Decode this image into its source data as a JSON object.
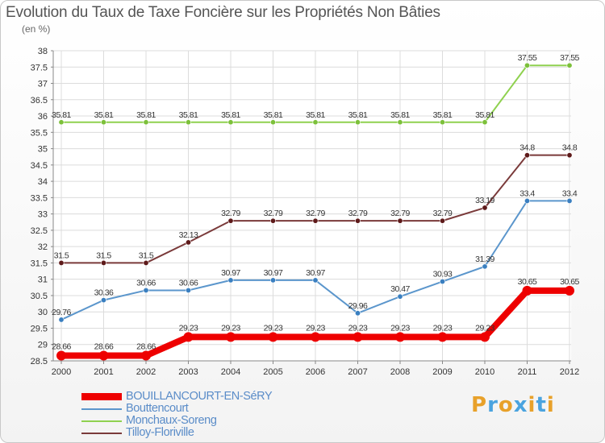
{
  "title": "Evolution du Taux de Taxe Foncière sur les Propriétés Non Bâties",
  "unit": "(en %)",
  "logo": {
    "letters": [
      "P",
      "r",
      "o",
      "x",
      "i",
      "t",
      "i"
    ],
    "colors": [
      "#e8a12a",
      "#4aa3df",
      "#e8a12a",
      "#4aa3df",
      "#e8a12a",
      "#4aa3df",
      "#e8a12a"
    ]
  },
  "chart_data": {
    "type": "line",
    "title": "Evolution du Taux de Taxe Foncière sur les Propriétés Non Bâties",
    "ylabel": "(en %)",
    "xlabel": "",
    "x": [
      "2000",
      "2001",
      "2002",
      "2003",
      "2004",
      "2005",
      "2006",
      "2007",
      "2008",
      "2009",
      "2010",
      "2011",
      "2012"
    ],
    "ylim": [
      28.5,
      38
    ],
    "yticks": [
      "28.5",
      "29",
      "29.5",
      "30",
      "30.5",
      "31",
      "31.5",
      "32",
      "32.5",
      "33",
      "33.5",
      "34",
      "34.5",
      "35",
      "35.5",
      "36",
      "36.5",
      "37",
      "37.5",
      "38"
    ],
    "grid": true,
    "legend_position": "bottom-left",
    "series": [
      {
        "name": "Monchaux-Soreng",
        "color": "#8fd14f",
        "marker": "#7cc03a",
        "width": 2,
        "values": [
          35.81,
          35.81,
          35.81,
          35.81,
          35.81,
          35.81,
          35.81,
          35.81,
          35.81,
          35.81,
          35.81,
          37.55,
          37.55
        ],
        "labels": [
          "35.81",
          "35.81",
          "35.81",
          "35.81",
          "35.81",
          "35.81",
          "35.81",
          "35.81",
          "35.81",
          "35.81",
          "35.81",
          "37.55",
          "37.55"
        ]
      },
      {
        "name": "Tilloy-Floriville",
        "color": "#7a3a3a",
        "marker": "#5e1a1a",
        "width": 2,
        "values": [
          31.5,
          31.5,
          31.5,
          32.13,
          32.79,
          32.79,
          32.79,
          32.79,
          32.79,
          32.79,
          33.19,
          34.8,
          34.8
        ],
        "labels": [
          "31.5",
          "31.5",
          "31.5",
          "32.13",
          "32.79",
          "32.79",
          "32.79",
          "32.79",
          "32.79",
          "32.79",
          "33.19",
          "34.8",
          "34.8"
        ]
      },
      {
        "name": "Bouttencourt",
        "color": "#5b96cc",
        "marker": "#3a7fc0",
        "width": 2,
        "values": [
          29.76,
          30.36,
          30.66,
          30.66,
          30.97,
          30.97,
          30.97,
          29.96,
          30.47,
          30.93,
          31.39,
          33.4,
          33.4
        ],
        "labels": [
          "29.76",
          "30.36",
          "30.66",
          "30.66",
          "30.97",
          "30.97",
          "30.97",
          "29.96",
          "30.47",
          "30.93",
          "31.39",
          "33.4",
          "33.4"
        ]
      },
      {
        "name": "BOUILLANCOURT-EN-SéRY",
        "color": "#ee0000",
        "marker": "#ee0000",
        "width": 8,
        "values": [
          28.66,
          28.66,
          28.66,
          29.23,
          29.23,
          29.23,
          29.23,
          29.23,
          29.23,
          29.23,
          29.23,
          30.65,
          30.65
        ],
        "labels": [
          "28.66",
          "28.66",
          "28.66",
          "29.23",
          "29.23",
          "29.23",
          "29.23",
          "29.23",
          "29.23",
          "29.23",
          "29.23",
          "30.65",
          "30.65"
        ]
      }
    ],
    "legend": [
      "BOUILLANCOURT-EN-SéRY",
      "Bouttencourt",
      "Monchaux-Soreng",
      "Tilloy-Floriville"
    ]
  }
}
